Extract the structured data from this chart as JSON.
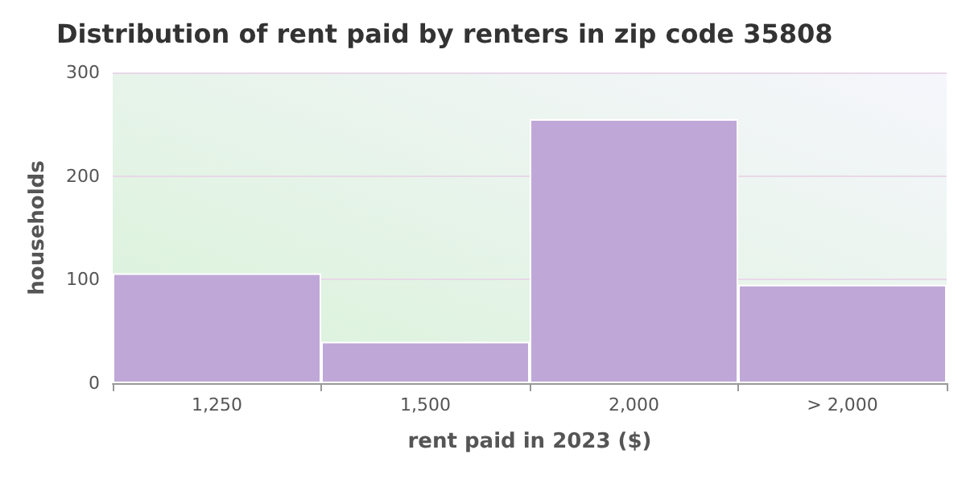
{
  "chart_data": {
    "type": "bar",
    "title": "Distribution of rent paid by renters in zip code 35808",
    "xlabel": "rent paid in 2023 ($)",
    "ylabel": "households",
    "categories": [
      "1,250",
      "1,500",
      "2,000",
      "> 2,000"
    ],
    "values": [
      106,
      40,
      255,
      95
    ],
    "color": "#bfa8d8",
    "ylim": [
      0,
      300
    ],
    "yticks": [
      0,
      100,
      200,
      300
    ],
    "grid": "y"
  }
}
